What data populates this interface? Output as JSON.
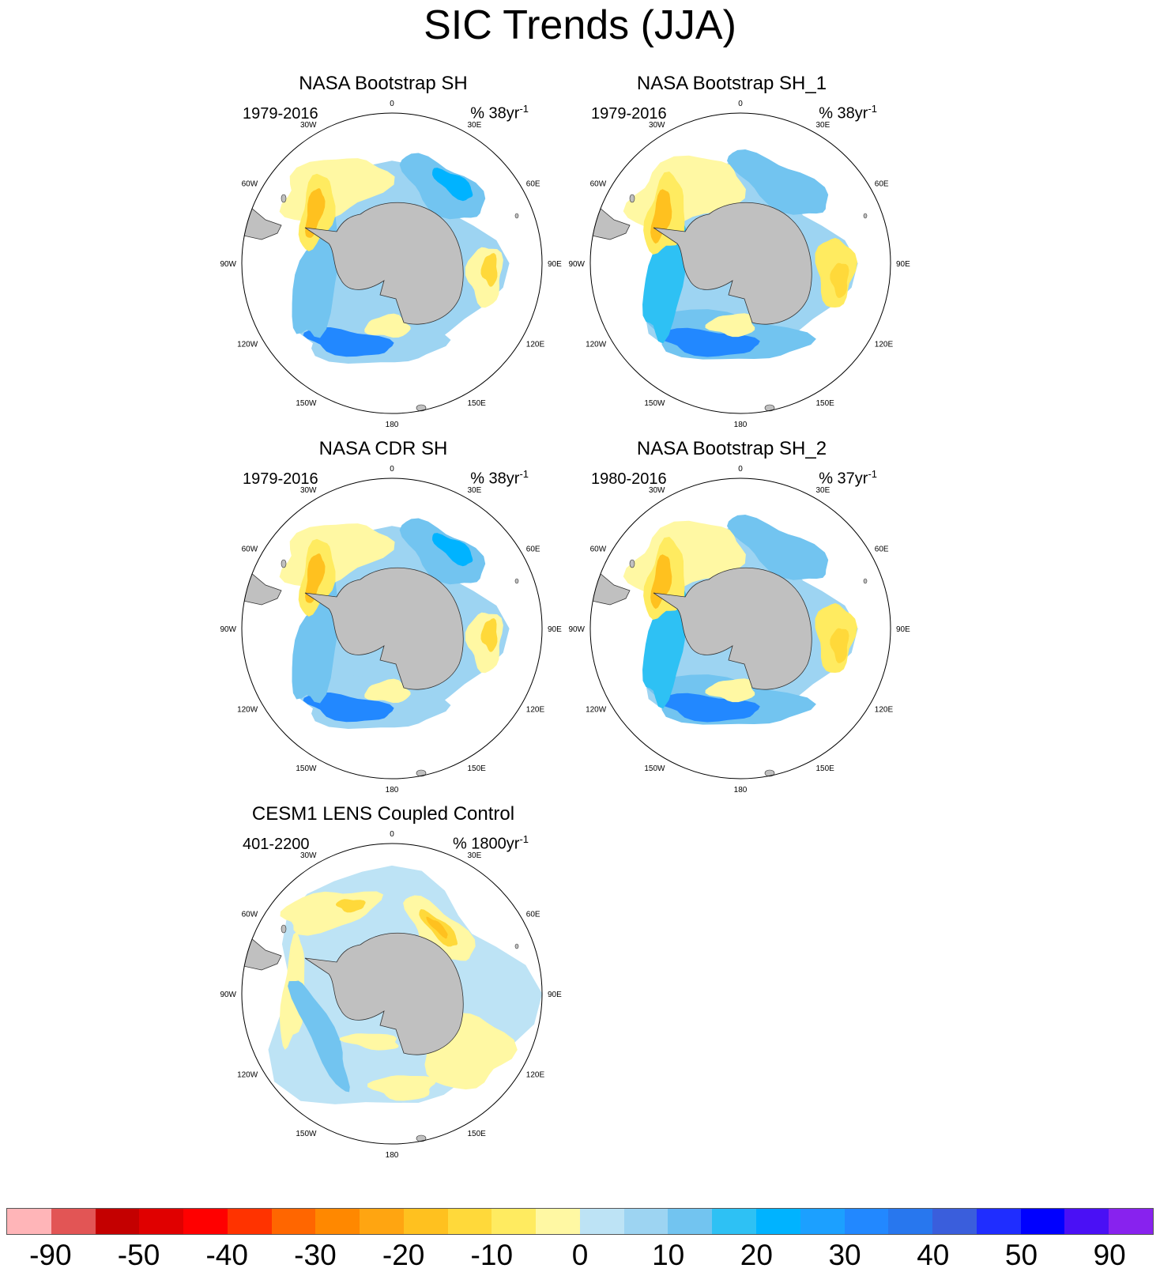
{
  "title": "SIC Trends (JJA)",
  "panels": [
    {
      "title": "NASA Bootstrap SH",
      "period": "1979-2016",
      "units_prefix": "% 38yr",
      "units_sup": "-1",
      "variant": "obs_a"
    },
    {
      "title": "NASA Bootstrap SH_1",
      "period": "1979-2016",
      "units_prefix": "% 38yr",
      "units_sup": "-1",
      "variant": "obs_b"
    },
    {
      "title": "NASA CDR SH",
      "period": "1979-2016",
      "units_prefix": "% 38yr",
      "units_sup": "-1",
      "variant": "obs_a"
    },
    {
      "title": "NASA Bootstrap SH_2",
      "period": "1980-2016",
      "units_prefix": "% 37yr",
      "units_sup": "-1",
      "variant": "obs_b"
    },
    {
      "title": "CESM1 LENS Coupled Control",
      "period": "401-2200",
      "units_prefix": "% 1800yr",
      "units_sup": "-1",
      "variant": "model"
    }
  ],
  "map": {
    "projection": "south polar stereographic",
    "longitude_labels": [
      "0",
      "30E",
      "60E",
      "90E",
      "120E",
      "150E",
      "180",
      "150W",
      "120W",
      "90W",
      "60W",
      "30W"
    ],
    "land_color": "#c0c0c0",
    "ocean_color": "#ffffff"
  },
  "colorbar": {
    "colors": [
      "#ffb5b8",
      "#e25555",
      "#c40000",
      "#e00000",
      "#ff0000",
      "#ff3300",
      "#ff6600",
      "#ff8800",
      "#ffa511",
      "#ffc11f",
      "#ffd93a",
      "#ffeb60",
      "#fff8a3",
      "#bde3f5",
      "#9dd4f2",
      "#72c4f0",
      "#2ec1f4",
      "#00b3ff",
      "#1ca0ff",
      "#2288ff",
      "#2877ee",
      "#3a5edc",
      "#1f2dff",
      "#0000ff",
      "#4a10f5",
      "#8822ee"
    ],
    "labels": [
      "-90",
      "-50",
      "-40",
      "-30",
      "-20",
      "-10",
      "0",
      "10",
      "20",
      "30",
      "40",
      "50",
      "90"
    ]
  }
}
